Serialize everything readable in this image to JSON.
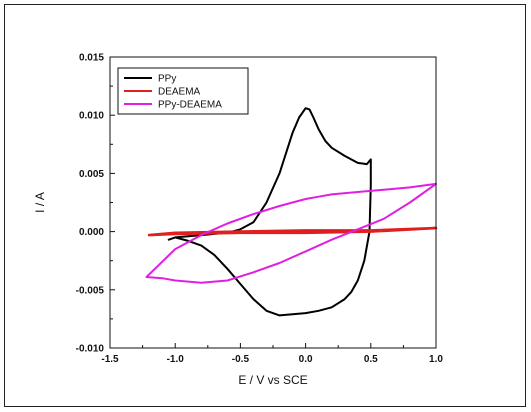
{
  "chart_data": {
    "type": "line",
    "title": "",
    "xlabel": "E / V vs SCE",
    "ylabel": "I / A",
    "xlim": [
      -1.5,
      1.0
    ],
    "ylim": [
      -0.01,
      0.015
    ],
    "xticks": [
      -1.5,
      -1.0,
      -0.5,
      0.0,
      0.5,
      1.0
    ],
    "xtick_labels": [
      "-1.5",
      "-1.0",
      "-0.5",
      "0.0",
      "0.5",
      "1.0"
    ],
    "yticks": [
      -0.01,
      -0.005,
      0.0,
      0.005,
      0.01,
      0.015
    ],
    "ytick_labels": [
      "-0.010",
      "-0.005",
      "0.000",
      "0.005",
      "0.010",
      "0.015"
    ],
    "grid": false,
    "legend_position": "top-left",
    "series": [
      {
        "name": "PPy",
        "color": "#000000",
        "x": [
          -1.0,
          -0.9,
          -0.8,
          -0.7,
          -0.6,
          -0.5,
          -0.4,
          -0.3,
          -0.2,
          -0.1,
          -0.05,
          0.0,
          0.03,
          0.06,
          0.1,
          0.15,
          0.2,
          0.3,
          0.4,
          0.47,
          0.5,
          0.5,
          0.49,
          0.45,
          0.4,
          0.35,
          0.3,
          0.2,
          0.1,
          0.0,
          -0.1,
          -0.2,
          -0.3,
          -0.4,
          -0.5,
          -0.6,
          -0.7,
          -0.8,
          -0.9,
          -1.0,
          -1.05,
          -1.0
        ],
        "y": [
          -0.0005,
          -0.0004,
          -0.0003,
          -0.0002,
          -0.0001,
          0.0002,
          0.0008,
          0.0025,
          0.005,
          0.0085,
          0.0098,
          0.0106,
          0.0105,
          0.0098,
          0.0088,
          0.0078,
          0.0072,
          0.0065,
          0.0059,
          0.0058,
          0.0062,
          0.004,
          0.0,
          -0.0025,
          -0.0042,
          -0.0052,
          -0.0058,
          -0.0065,
          -0.0068,
          -0.007,
          -0.0071,
          -0.0072,
          -0.0068,
          -0.0058,
          -0.0045,
          -0.0032,
          -0.002,
          -0.0012,
          -0.0008,
          -0.0005,
          -0.0007,
          -0.0005
        ]
      },
      {
        "name": "DEAEMA",
        "color": "#e02020",
        "x": [
          -1.2,
          -1.0,
          -0.5,
          0.0,
          0.5,
          1.0,
          0.5,
          0.0,
          -0.5,
          -1.0,
          -1.2
        ],
        "y": [
          -0.0003,
          -0.0001,
          0.0,
          0.0001,
          0.0001,
          0.0003,
          0.0,
          -0.0001,
          -0.0001,
          -0.0002,
          -0.0003
        ]
      },
      {
        "name": "PPy-DEAEMA",
        "color": "#e020e0",
        "x": [
          -1.22,
          -1.0,
          -0.8,
          -0.6,
          -0.4,
          -0.2,
          0.0,
          0.1,
          0.2,
          0.4,
          0.6,
          0.8,
          1.0,
          0.8,
          0.6,
          0.4,
          0.2,
          0.0,
          -0.2,
          -0.4,
          -0.6,
          -0.8,
          -1.0,
          -1.1,
          -1.22
        ],
        "y": [
          -0.0039,
          -0.0015,
          -0.0003,
          0.0007,
          0.0015,
          0.0022,
          0.0028,
          0.003,
          0.0032,
          0.0034,
          0.0036,
          0.0038,
          0.0041,
          0.0025,
          0.0011,
          0.0002,
          -0.0007,
          -0.0017,
          -0.0027,
          -0.0035,
          -0.0042,
          -0.0044,
          -0.0042,
          -0.004,
          -0.0039
        ]
      }
    ]
  }
}
